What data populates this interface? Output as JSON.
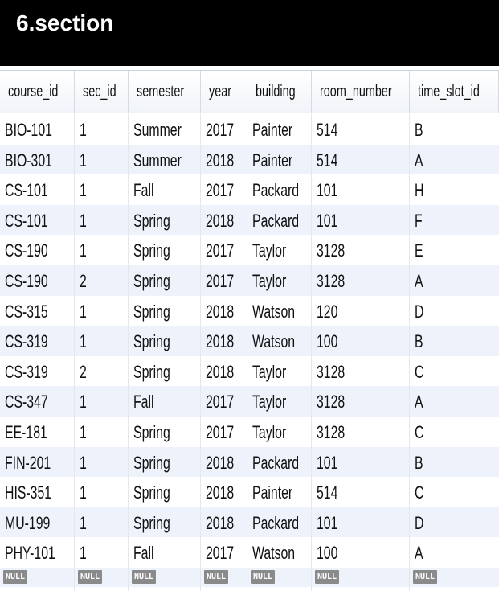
{
  "title": "6.section",
  "columns": [
    "course_id",
    "sec_id",
    "semester",
    "year",
    "building",
    "room_number",
    "time_slot_id"
  ],
  "rows": [
    [
      "BIO-101",
      "1",
      "Summer",
      "2017",
      "Painter",
      "514",
      "B"
    ],
    [
      "BIO-301",
      "1",
      "Summer",
      "2018",
      "Painter",
      "514",
      "A"
    ],
    [
      "CS-101",
      "1",
      "Fall",
      "2017",
      "Packard",
      "101",
      "H"
    ],
    [
      "CS-101",
      "1",
      "Spring",
      "2018",
      "Packard",
      "101",
      "F"
    ],
    [
      "CS-190",
      "1",
      "Spring",
      "2017",
      "Taylor",
      "3128",
      "E"
    ],
    [
      "CS-190",
      "2",
      "Spring",
      "2017",
      "Taylor",
      "3128",
      "A"
    ],
    [
      "CS-315",
      "1",
      "Spring",
      "2018",
      "Watson",
      "120",
      "D"
    ],
    [
      "CS-319",
      "1",
      "Spring",
      "2018",
      "Watson",
      "100",
      "B"
    ],
    [
      "CS-319",
      "2",
      "Spring",
      "2018",
      "Taylor",
      "3128",
      "C"
    ],
    [
      "CS-347",
      "1",
      "Fall",
      "2017",
      "Taylor",
      "3128",
      "A"
    ],
    [
      "EE-181",
      "1",
      "Spring",
      "2017",
      "Taylor",
      "3128",
      "C"
    ],
    [
      "FIN-201",
      "1",
      "Spring",
      "2018",
      "Packard",
      "101",
      "B"
    ],
    [
      "HIS-351",
      "1",
      "Spring",
      "2018",
      "Painter",
      "514",
      "C"
    ],
    [
      "MU-199",
      "1",
      "Spring",
      "2018",
      "Packard",
      "101",
      "D"
    ],
    [
      "PHY-101",
      "1",
      "Fall",
      "2017",
      "Watson",
      "100",
      "A"
    ]
  ],
  "null_label": "NULL",
  "colors": {
    "title_bg": "#000000",
    "title_fg": "#ffffff",
    "row_alt": "#eef3fb",
    "null_badge": "#8a8a8a"
  }
}
